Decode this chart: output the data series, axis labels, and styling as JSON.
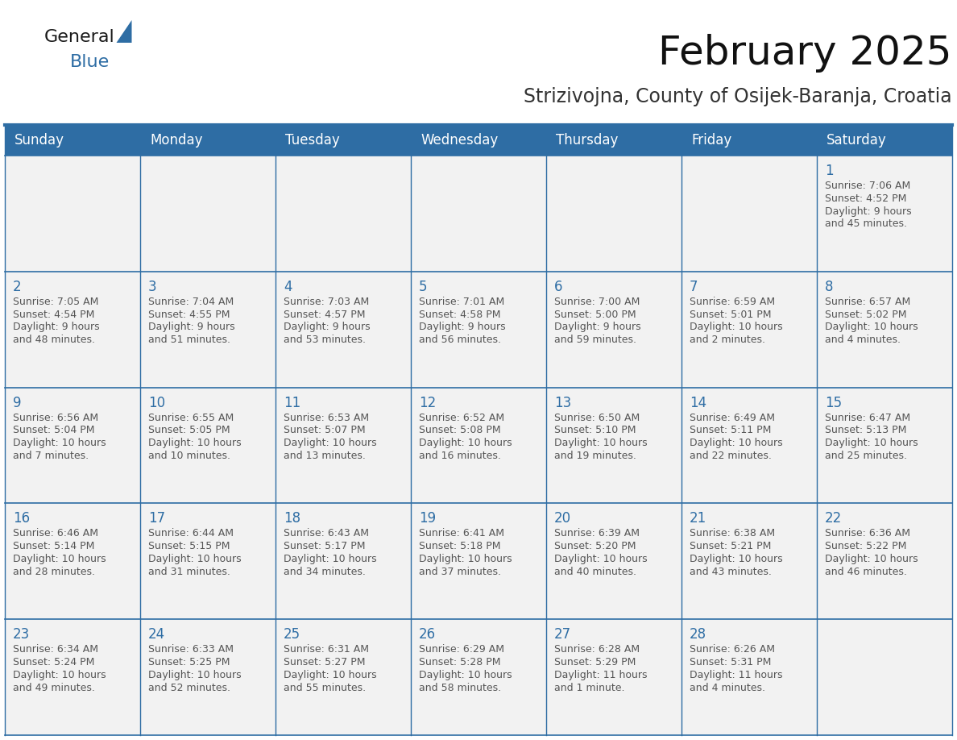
{
  "title": "February 2025",
  "subtitle": "Strizivojna, County of Osijek-Baranja, Croatia",
  "header_bg": "#2E6DA4",
  "header_text_color": "#FFFFFF",
  "cell_bg_odd": "#F2F2F2",
  "cell_bg_even": "#FFFFFF",
  "day_number_color": "#2E6DA4",
  "cell_text_color": "#555555",
  "border_color": "#2E6DA4",
  "days_of_week": [
    "Sunday",
    "Monday",
    "Tuesday",
    "Wednesday",
    "Thursday",
    "Friday",
    "Saturday"
  ],
  "calendar_data": [
    [
      null,
      null,
      null,
      null,
      null,
      null,
      {
        "day": "1",
        "sunrise": "7:06 AM",
        "sunset": "4:52 PM",
        "daylight": "9 hours\nand 45 minutes."
      }
    ],
    [
      {
        "day": "2",
        "sunrise": "7:05 AM",
        "sunset": "4:54 PM",
        "daylight": "9 hours\nand 48 minutes."
      },
      {
        "day": "3",
        "sunrise": "7:04 AM",
        "sunset": "4:55 PM",
        "daylight": "9 hours\nand 51 minutes."
      },
      {
        "day": "4",
        "sunrise": "7:03 AM",
        "sunset": "4:57 PM",
        "daylight": "9 hours\nand 53 minutes."
      },
      {
        "day": "5",
        "sunrise": "7:01 AM",
        "sunset": "4:58 PM",
        "daylight": "9 hours\nand 56 minutes."
      },
      {
        "day": "6",
        "sunrise": "7:00 AM",
        "sunset": "5:00 PM",
        "daylight": "9 hours\nand 59 minutes."
      },
      {
        "day": "7",
        "sunrise": "6:59 AM",
        "sunset": "5:01 PM",
        "daylight": "10 hours\nand 2 minutes."
      },
      {
        "day": "8",
        "sunrise": "6:57 AM",
        "sunset": "5:02 PM",
        "daylight": "10 hours\nand 4 minutes."
      }
    ],
    [
      {
        "day": "9",
        "sunrise": "6:56 AM",
        "sunset": "5:04 PM",
        "daylight": "10 hours\nand 7 minutes."
      },
      {
        "day": "10",
        "sunrise": "6:55 AM",
        "sunset": "5:05 PM",
        "daylight": "10 hours\nand 10 minutes."
      },
      {
        "day": "11",
        "sunrise": "6:53 AM",
        "sunset": "5:07 PM",
        "daylight": "10 hours\nand 13 minutes."
      },
      {
        "day": "12",
        "sunrise": "6:52 AM",
        "sunset": "5:08 PM",
        "daylight": "10 hours\nand 16 minutes."
      },
      {
        "day": "13",
        "sunrise": "6:50 AM",
        "sunset": "5:10 PM",
        "daylight": "10 hours\nand 19 minutes."
      },
      {
        "day": "14",
        "sunrise": "6:49 AM",
        "sunset": "5:11 PM",
        "daylight": "10 hours\nand 22 minutes."
      },
      {
        "day": "15",
        "sunrise": "6:47 AM",
        "sunset": "5:13 PM",
        "daylight": "10 hours\nand 25 minutes."
      }
    ],
    [
      {
        "day": "16",
        "sunrise": "6:46 AM",
        "sunset": "5:14 PM",
        "daylight": "10 hours\nand 28 minutes."
      },
      {
        "day": "17",
        "sunrise": "6:44 AM",
        "sunset": "5:15 PM",
        "daylight": "10 hours\nand 31 minutes."
      },
      {
        "day": "18",
        "sunrise": "6:43 AM",
        "sunset": "5:17 PM",
        "daylight": "10 hours\nand 34 minutes."
      },
      {
        "day": "19",
        "sunrise": "6:41 AM",
        "sunset": "5:18 PM",
        "daylight": "10 hours\nand 37 minutes."
      },
      {
        "day": "20",
        "sunrise": "6:39 AM",
        "sunset": "5:20 PM",
        "daylight": "10 hours\nand 40 minutes."
      },
      {
        "day": "21",
        "sunrise": "6:38 AM",
        "sunset": "5:21 PM",
        "daylight": "10 hours\nand 43 minutes."
      },
      {
        "day": "22",
        "sunrise": "6:36 AM",
        "sunset": "5:22 PM",
        "daylight": "10 hours\nand 46 minutes."
      }
    ],
    [
      {
        "day": "23",
        "sunrise": "6:34 AM",
        "sunset": "5:24 PM",
        "daylight": "10 hours\nand 49 minutes."
      },
      {
        "day": "24",
        "sunrise": "6:33 AM",
        "sunset": "5:25 PM",
        "daylight": "10 hours\nand 52 minutes."
      },
      {
        "day": "25",
        "sunrise": "6:31 AM",
        "sunset": "5:27 PM",
        "daylight": "10 hours\nand 55 minutes."
      },
      {
        "day": "26",
        "sunrise": "6:29 AM",
        "sunset": "5:28 PM",
        "daylight": "10 hours\nand 58 minutes."
      },
      {
        "day": "27",
        "sunrise": "6:28 AM",
        "sunset": "5:29 PM",
        "daylight": "11 hours\nand 1 minute."
      },
      {
        "day": "28",
        "sunrise": "6:26 AM",
        "sunset": "5:31 PM",
        "daylight": "11 hours\nand 4 minutes."
      },
      null
    ]
  ],
  "title_fontsize": 36,
  "subtitle_fontsize": 17,
  "header_fontsize": 12,
  "day_number_fontsize": 12,
  "cell_text_fontsize": 9
}
